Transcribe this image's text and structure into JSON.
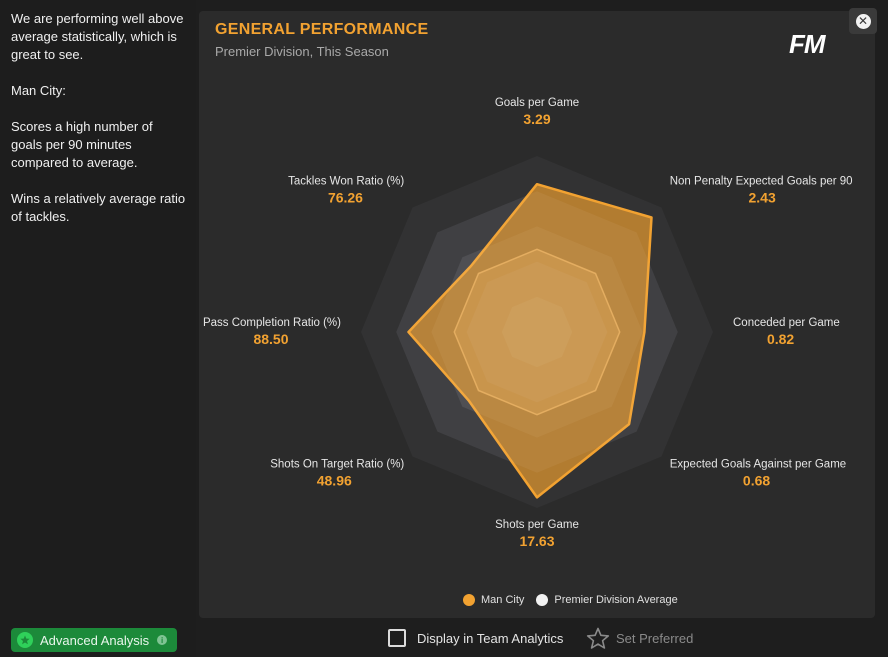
{
  "sidebar": {
    "paragraphs": [
      "We are performing well above average statistically, which is great to see.",
      "Man City:",
      "Scores a high number of goals per 90 minutes compared to average.",
      "Wins a relatively average ratio of tackles."
    ],
    "advanced_analysis_label": "Advanced Analysis"
  },
  "panel": {
    "title": "GENERAL PERFORMANCE",
    "subtitle": "Premier Division, This Season",
    "logo_text": "FM"
  },
  "colors": {
    "accent": "#f2a231",
    "team_fill": "#e3982f",
    "average_fill": "#f0dcbf",
    "panel_bg": "#2b2b2b"
  },
  "chart_data": {
    "type": "radar",
    "metrics": [
      {
        "label": "Goals per Game",
        "value": "3.29",
        "team": 0.84,
        "avg": 0.47
      },
      {
        "label": "Non Penalty Expected Goals per 90",
        "value": "2.43",
        "team": 0.92,
        "avg": 0.47
      },
      {
        "label": "Conceded per Game",
        "value": "0.82",
        "team": 0.61,
        "avg": 0.47
      },
      {
        "label": "Expected Goals Against per Game",
        "value": "0.68",
        "team": 0.74,
        "avg": 0.47
      },
      {
        "label": "Shots per Game",
        "value": "17.63",
        "team": 0.94,
        "avg": 0.47
      },
      {
        "label": "Shots On Target Ratio (%)",
        "value": "48.96",
        "team": 0.55,
        "avg": 0.47
      },
      {
        "label": "Pass Completion Ratio (%)",
        "value": "88.50",
        "team": 0.73,
        "avg": 0.47
      },
      {
        "label": "Tackles Won Ratio (%)",
        "value": "76.26",
        "team": 0.53,
        "avg": 0.47
      }
    ],
    "series": [
      {
        "name": "Man City",
        "color": "#f2a231"
      },
      {
        "name": "Premier Division Average",
        "color": "#f2f2f2"
      }
    ],
    "legend_position": "bottom-right"
  },
  "footer": {
    "display_label": "Display in Team Analytics",
    "preferred_label": "Set Preferred"
  }
}
